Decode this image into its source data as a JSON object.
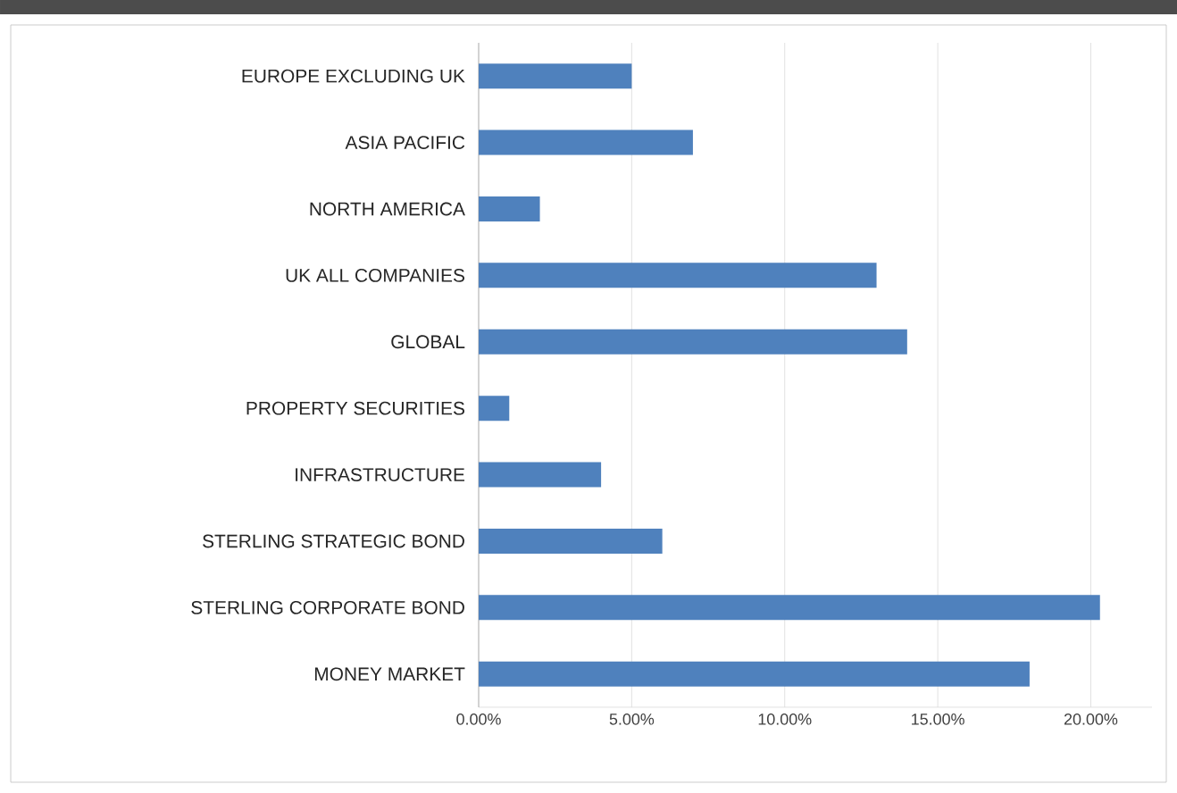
{
  "chart_data": {
    "type": "bar",
    "orientation": "horizontal",
    "categories": [
      "EUROPE EXCLUDING UK",
      "ASIA PACIFIC",
      "NORTH AMERICA",
      "UK ALL COMPANIES",
      "GLOBAL",
      "PROPERTY SECURITIES",
      "INFRASTRUCTURE",
      "STERLING STRATEGIC BOND",
      "STERLING CORPORATE BOND",
      "MONEY MARKET"
    ],
    "values": [
      5,
      7,
      2,
      13,
      14,
      1,
      4,
      6,
      20.3,
      18
    ],
    "color": "#4f81bd",
    "xlim": [
      0,
      22
    ],
    "xticks": [
      {
        "value": 0,
        "label": "0.00%"
      },
      {
        "value": 5,
        "label": "5.00%"
      },
      {
        "value": 10,
        "label": "10.00%"
      },
      {
        "value": 15,
        "label": "15.00%"
      },
      {
        "value": 20,
        "label": "20.00%"
      }
    ],
    "grid": "x"
  }
}
